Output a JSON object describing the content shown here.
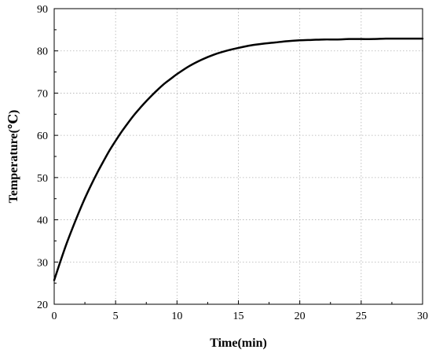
{
  "chart_data": {
    "type": "line",
    "title": "",
    "xlabel": "Time(min)",
    "ylabel": "Temperature(℃)",
    "xlim": [
      0,
      30
    ],
    "ylim": [
      20,
      90
    ],
    "xticks": [
      0,
      5,
      10,
      15,
      20,
      25,
      30
    ],
    "yticks": [
      20,
      30,
      40,
      50,
      60,
      70,
      80,
      90
    ],
    "xtick_labels": [
      "0",
      "5",
      "10",
      "15",
      "20",
      "25",
      "30"
    ],
    "ytick_labels": [
      "20",
      "30",
      "40",
      "50",
      "60",
      "70",
      "80",
      "90"
    ],
    "grid": true,
    "grid_style": "dotted",
    "line_color": "#000000",
    "series": [
      {
        "x": [
          0,
          0.5,
          1,
          1.5,
          2,
          2.5,
          3,
          3.5,
          4,
          4.5,
          5,
          5.5,
          6,
          6.5,
          7,
          7.5,
          8,
          8.5,
          9,
          9.5,
          10,
          11,
          12,
          13,
          14,
          15,
          16,
          17,
          18,
          19,
          20,
          21,
          22,
          23,
          24,
          25,
          26,
          27,
          28,
          29,
          30
        ],
        "values": [
          25.7,
          30.1,
          34.3,
          38.1,
          41.7,
          45.1,
          48.2,
          51.1,
          53.8,
          56.4,
          58.7,
          60.9,
          62.9,
          64.8,
          66.5,
          68.1,
          69.6,
          71.0,
          72.3,
          73.4,
          74.5,
          76.4,
          77.9,
          79.1,
          80.0,
          80.7,
          81.3,
          81.7,
          82.0,
          82.3,
          82.5,
          82.6,
          82.7,
          82.7,
          82.8,
          82.8,
          82.8,
          82.9,
          82.9,
          82.9,
          82.9
        ]
      }
    ]
  }
}
